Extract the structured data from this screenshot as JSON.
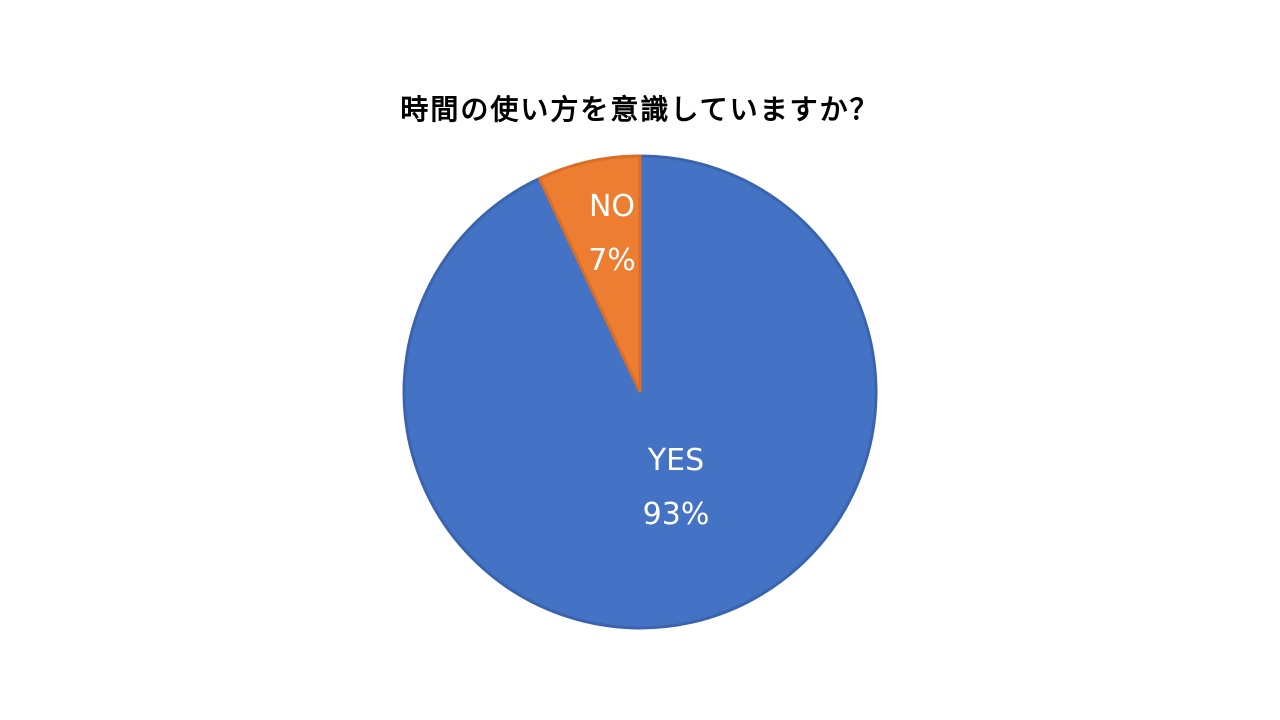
{
  "chart_data": {
    "type": "pie",
    "title": "時間の使い方を意識していますか？",
    "slices": [
      {
        "label": "YES",
        "value": 93,
        "value_label": "93%",
        "color": "#4472C4"
      },
      {
        "label": "NO",
        "value": 7,
        "value_label": "7%",
        "color": "#ED7D31"
      }
    ],
    "start_angle": "12 o'clock, counterclockwise"
  }
}
